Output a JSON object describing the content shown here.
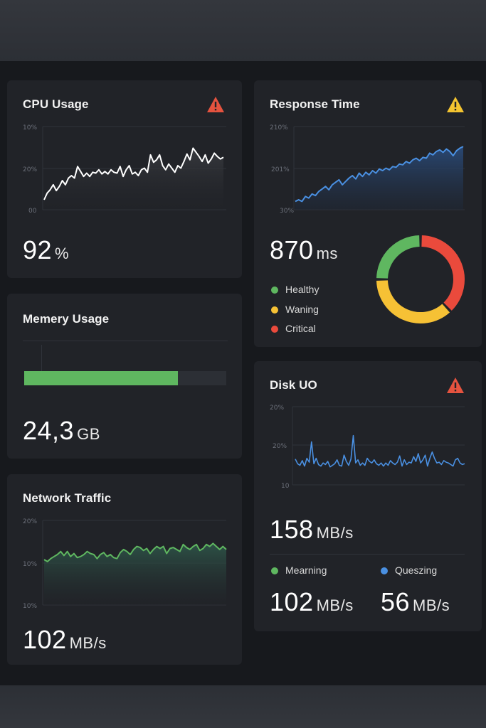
{
  "colors": {
    "background": "#17191d",
    "card": "#212328",
    "warning_red": "#e5533f",
    "warning_yellow": "#f4c430",
    "green": "#5fb760",
    "yellow": "#f6c135",
    "red": "#ea4a3c",
    "blue": "#4a90e2"
  },
  "cards": {
    "cpu": {
      "title": "CPU Usage",
      "icon": "warning-triangle-red-icon",
      "value": "92",
      "unit": "%"
    },
    "memory": {
      "title": "Memery Usage",
      "value": "24,3",
      "unit": "GB",
      "fill_fraction": 0.76
    },
    "network": {
      "title": "Network Traffic",
      "value": "102",
      "unit": "MB/s"
    },
    "response": {
      "title": "Response Time",
      "icon": "warning-triangle-yellow-icon",
      "value": "870",
      "unit": "ms",
      "legend": [
        {
          "label": "Healthy",
          "color": "#5fb760"
        },
        {
          "label": "Waning",
          "color": "#f6c135"
        },
        {
          "label": "Critical",
          "color": "#ea4a3c"
        }
      ]
    },
    "disk": {
      "title": "Disk UO",
      "icon": "warning-triangle-red-icon",
      "value": "158",
      "unit": "MB/s",
      "legend": [
        {
          "label": "Mearning",
          "color": "#5fb760",
          "value": "102",
          "unit": "MB/s"
        },
        {
          "label": "Queszing",
          "color": "#4a90e2",
          "value": "56",
          "unit": "MB/s"
        }
      ]
    }
  },
  "chart_data": [
    {
      "id": "cpu",
      "type": "area",
      "title": "CPU Usage",
      "y_tick_labels": [
        "10%",
        "20%",
        "00"
      ],
      "ylim": [
        0,
        100
      ],
      "color": "#ffffff",
      "x": [
        0,
        1,
        2,
        3,
        4,
        5,
        6,
        7,
        8,
        9,
        10,
        11,
        12,
        13,
        14,
        15,
        16,
        17,
        18,
        19,
        20,
        21,
        22,
        23,
        24,
        25,
        26,
        27,
        28,
        29,
        30,
        31,
        32,
        33,
        34,
        35,
        36,
        37,
        38,
        39,
        40,
        41,
        42,
        43,
        44,
        45,
        46,
        47,
        48,
        49,
        50,
        51,
        52,
        53,
        54,
        55,
        56,
        57,
        58,
        59
      ],
      "values": [
        12,
        20,
        24,
        30,
        23,
        28,
        35,
        30,
        38,
        41,
        38,
        52,
        46,
        40,
        44,
        40,
        45,
        44,
        48,
        43,
        46,
        43,
        48,
        45,
        44,
        52,
        40,
        48,
        53,
        43,
        45,
        41,
        48,
        50,
        45,
        66,
        57,
        60,
        66,
        53,
        48,
        55,
        50,
        45,
        53,
        50,
        58,
        67,
        60,
        74,
        69,
        64,
        58,
        66,
        56,
        61,
        68,
        64,
        61,
        63
      ],
      "vmin": 0,
      "vmax": 100
    },
    {
      "id": "response",
      "type": "area",
      "title": "Response Time",
      "y_tick_labels": [
        "210%",
        "201%",
        "30%"
      ],
      "color": "#4a90e2",
      "values": [
        10,
        12,
        10,
        16,
        14,
        19,
        17,
        22,
        25,
        28,
        24,
        30,
        33,
        36,
        30,
        34,
        38,
        41,
        37,
        44,
        40,
        45,
        42,
        47,
        44,
        49,
        47,
        50,
        48,
        52,
        51,
        55,
        54,
        58,
        56,
        60,
        62,
        59,
        63,
        62,
        68,
        66,
        70,
        72,
        69,
        73,
        70,
        65,
        71,
        74,
        76
      ],
      "vmin": 0,
      "vmax": 100
    },
    {
      "id": "network",
      "type": "area",
      "title": "Network Traffic",
      "y_tick_labels": [
        "20%",
        "10%",
        "10%"
      ],
      "color": "#5fb760",
      "values": [
        45,
        43,
        46,
        48,
        50,
        53,
        49,
        53,
        48,
        51,
        47,
        48,
        50,
        53,
        51,
        50,
        46,
        50,
        52,
        48,
        50,
        47,
        46,
        52,
        55,
        53,
        50,
        55,
        58,
        57,
        54,
        56,
        51,
        55,
        58,
        56,
        58,
        51,
        56,
        57,
        55,
        53,
        60,
        57,
        55,
        58,
        60,
        54,
        56,
        60,
        58,
        61,
        58,
        55,
        58,
        55
      ],
      "vmin": 0,
      "vmax": 100
    },
    {
      "id": "disk",
      "type": "line",
      "title": "Disk UO",
      "y_tick_labels": [
        "20%",
        "20%",
        "10"
      ],
      "color": "#4a90e2",
      "values": [
        33,
        27,
        25,
        31,
        24,
        34,
        29,
        55,
        27,
        34,
        26,
        24,
        28,
        26,
        30,
        23,
        25,
        27,
        32,
        25,
        24,
        38,
        30,
        25,
        33,
        63,
        28,
        32,
        25,
        28,
        25,
        34,
        30,
        28,
        32,
        27,
        25,
        28,
        24,
        28,
        25,
        31,
        28,
        26,
        29,
        37,
        24,
        32,
        26,
        29,
        28,
        36,
        30,
        40,
        28,
        32,
        38,
        24,
        34,
        42,
        34,
        28,
        29,
        26,
        31,
        29,
        28,
        26,
        24,
        32,
        34,
        28,
        26,
        27
      ],
      "vmin": 0,
      "vmax": 100
    },
    {
      "id": "response-donut",
      "type": "pie",
      "labels": [
        "Healthy",
        "Waning",
        "Critical"
      ],
      "values": [
        25,
        37,
        38
      ],
      "colors": [
        "#5fb760",
        "#f6c135",
        "#ea4a3c"
      ]
    }
  ]
}
